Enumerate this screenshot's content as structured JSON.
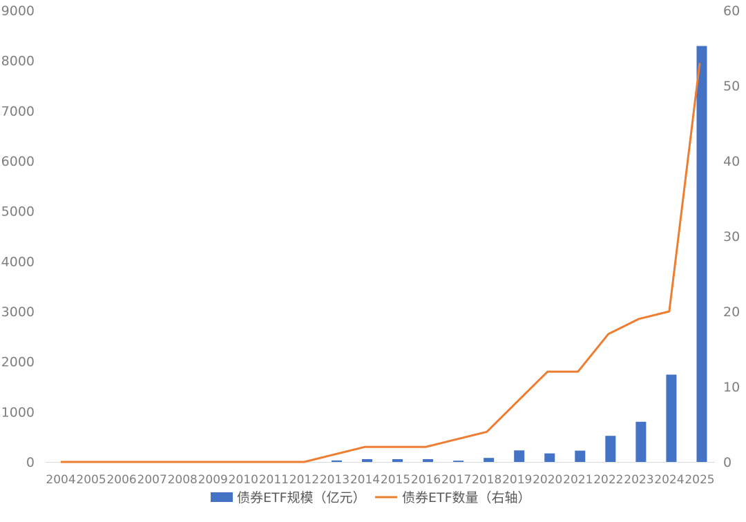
{
  "chart_data": {
    "type": "bar-line",
    "categories": [
      "2004",
      "2005",
      "2006",
      "2007",
      "2008",
      "2009",
      "2010",
      "2011",
      "2012",
      "2013",
      "2014",
      "2015",
      "2016",
      "2017",
      "2018",
      "2019",
      "2020",
      "2021",
      "2022",
      "2023",
      "2024",
      "2025"
    ],
    "series": [
      {
        "name": "债券ETF规模（亿元）",
        "type": "bar",
        "axis": "left",
        "color": "#4472C4",
        "values": [
          0,
          0,
          0,
          0,
          0,
          0,
          0,
          0,
          0,
          30,
          55,
          55,
          55,
          25,
          80,
          230,
          170,
          225,
          520,
          800,
          1740,
          8290
        ]
      },
      {
        "name": "债券ETF数量（右轴）",
        "type": "line",
        "axis": "right",
        "color": "#ED7D31",
        "values": [
          0,
          0,
          0,
          0,
          0,
          0,
          0,
          0,
          0,
          1,
          2,
          2,
          2,
          3,
          4,
          8,
          12,
          12,
          17,
          19,
          20,
          53
        ]
      }
    ],
    "y_left": {
      "min": 0,
      "max": 9000,
      "ticks": [
        "0",
        "1000",
        "2000",
        "3000",
        "4000",
        "5000",
        "6000",
        "7000",
        "8000",
        "9000"
      ]
    },
    "y_right": {
      "min": 0,
      "max": 60,
      "ticks": [
        "0",
        "10",
        "20",
        "30",
        "40",
        "50",
        "60"
      ]
    },
    "grid": false,
    "legend_position": "bottom"
  }
}
